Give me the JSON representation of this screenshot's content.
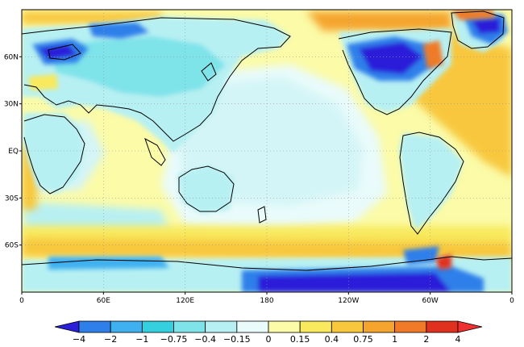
{
  "map": {
    "type": "global-anomaly-map",
    "projection": "equirectangular",
    "lon_range": [
      0,
      360
    ],
    "lat_range": [
      -90,
      90
    ],
    "lat_ticks": [
      {
        "label": "60N",
        "lat": 60
      },
      {
        "label": "30N",
        "lat": 30
      },
      {
        "label": "EQ",
        "lat": 0
      },
      {
        "label": "30S",
        "lat": -30
      },
      {
        "label": "60S",
        "lat": -60
      }
    ],
    "lon_ticks": [
      {
        "label": "0",
        "lon": 0
      },
      {
        "label": "60E",
        "lon": 60
      },
      {
        "label": "120E",
        "lon": 120
      },
      {
        "label": "180",
        "lon": 180
      },
      {
        "label": "120W",
        "lon": 240
      },
      {
        "label": "60W",
        "lon": 300
      },
      {
        "label": "0",
        "lon": 360
      }
    ],
    "grid": "dotted"
  },
  "colorbar": {
    "labels": [
      "-4",
      "-2",
      "-1",
      "-0.75",
      "-0.4",
      "-0.15",
      "0",
      "0.15",
      "0.4",
      "0.75",
      "1",
      "2",
      "4"
    ],
    "colors": [
      "#2b1fd9",
      "#2f7fea",
      "#3fb0f0",
      "#35d0e0",
      "#7fe3ea",
      "#b7f0f3",
      "#e9fbfb",
      "#fbfba8",
      "#f8e95d",
      "#f8c73c",
      "#f5a52d",
      "#f07a28",
      "#e0301e",
      "#f03030"
    ]
  }
}
